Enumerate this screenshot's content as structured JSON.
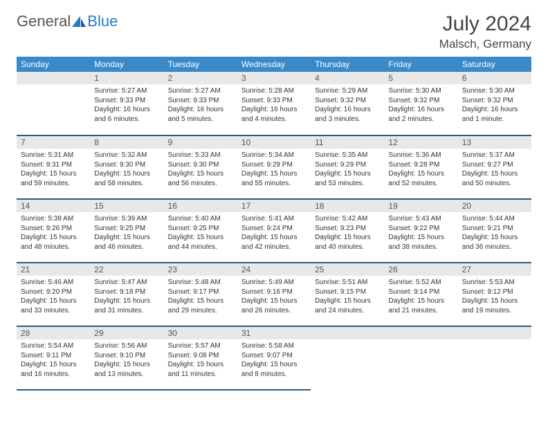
{
  "brand": {
    "part1": "General",
    "part2": "Blue"
  },
  "title": "July 2024",
  "location": "Malsch, Germany",
  "colors": {
    "header_bg": "#3a8ac9",
    "header_text": "#ffffff",
    "daynum_bg": "#e8e8e8",
    "cell_border": "#2a5a8a",
    "brand_blue": "#2a7abf",
    "text": "#333333"
  },
  "weekdays": [
    "Sunday",
    "Monday",
    "Tuesday",
    "Wednesday",
    "Thursday",
    "Friday",
    "Saturday"
  ],
  "weeks": [
    [
      null,
      {
        "n": "1",
        "sr": "Sunrise: 5:27 AM",
        "ss": "Sunset: 9:33 PM",
        "d1": "Daylight: 16 hours",
        "d2": "and 6 minutes."
      },
      {
        "n": "2",
        "sr": "Sunrise: 5:27 AM",
        "ss": "Sunset: 9:33 PM",
        "d1": "Daylight: 16 hours",
        "d2": "and 5 minutes."
      },
      {
        "n": "3",
        "sr": "Sunrise: 5:28 AM",
        "ss": "Sunset: 9:33 PM",
        "d1": "Daylight: 16 hours",
        "d2": "and 4 minutes."
      },
      {
        "n": "4",
        "sr": "Sunrise: 5:29 AM",
        "ss": "Sunset: 9:32 PM",
        "d1": "Daylight: 16 hours",
        "d2": "and 3 minutes."
      },
      {
        "n": "5",
        "sr": "Sunrise: 5:30 AM",
        "ss": "Sunset: 9:32 PM",
        "d1": "Daylight: 16 hours",
        "d2": "and 2 minutes."
      },
      {
        "n": "6",
        "sr": "Sunrise: 5:30 AM",
        "ss": "Sunset: 9:32 PM",
        "d1": "Daylight: 16 hours",
        "d2": "and 1 minute."
      }
    ],
    [
      {
        "n": "7",
        "sr": "Sunrise: 5:31 AM",
        "ss": "Sunset: 9:31 PM",
        "d1": "Daylight: 15 hours",
        "d2": "and 59 minutes."
      },
      {
        "n": "8",
        "sr": "Sunrise: 5:32 AM",
        "ss": "Sunset: 9:30 PM",
        "d1": "Daylight: 15 hours",
        "d2": "and 58 minutes."
      },
      {
        "n": "9",
        "sr": "Sunrise: 5:33 AM",
        "ss": "Sunset: 9:30 PM",
        "d1": "Daylight: 15 hours",
        "d2": "and 56 minutes."
      },
      {
        "n": "10",
        "sr": "Sunrise: 5:34 AM",
        "ss": "Sunset: 9:29 PM",
        "d1": "Daylight: 15 hours",
        "d2": "and 55 minutes."
      },
      {
        "n": "11",
        "sr": "Sunrise: 5:35 AM",
        "ss": "Sunset: 9:29 PM",
        "d1": "Daylight: 15 hours",
        "d2": "and 53 minutes."
      },
      {
        "n": "12",
        "sr": "Sunrise: 5:36 AM",
        "ss": "Sunset: 9:28 PM",
        "d1": "Daylight: 15 hours",
        "d2": "and 52 minutes."
      },
      {
        "n": "13",
        "sr": "Sunrise: 5:37 AM",
        "ss": "Sunset: 9:27 PM",
        "d1": "Daylight: 15 hours",
        "d2": "and 50 minutes."
      }
    ],
    [
      {
        "n": "14",
        "sr": "Sunrise: 5:38 AM",
        "ss": "Sunset: 9:26 PM",
        "d1": "Daylight: 15 hours",
        "d2": "and 48 minutes."
      },
      {
        "n": "15",
        "sr": "Sunrise: 5:39 AM",
        "ss": "Sunset: 9:25 PM",
        "d1": "Daylight: 15 hours",
        "d2": "and 46 minutes."
      },
      {
        "n": "16",
        "sr": "Sunrise: 5:40 AM",
        "ss": "Sunset: 9:25 PM",
        "d1": "Daylight: 15 hours",
        "d2": "and 44 minutes."
      },
      {
        "n": "17",
        "sr": "Sunrise: 5:41 AM",
        "ss": "Sunset: 9:24 PM",
        "d1": "Daylight: 15 hours",
        "d2": "and 42 minutes."
      },
      {
        "n": "18",
        "sr": "Sunrise: 5:42 AM",
        "ss": "Sunset: 9:23 PM",
        "d1": "Daylight: 15 hours",
        "d2": "and 40 minutes."
      },
      {
        "n": "19",
        "sr": "Sunrise: 5:43 AM",
        "ss": "Sunset: 9:22 PM",
        "d1": "Daylight: 15 hours",
        "d2": "and 38 minutes."
      },
      {
        "n": "20",
        "sr": "Sunrise: 5:44 AM",
        "ss": "Sunset: 9:21 PM",
        "d1": "Daylight: 15 hours",
        "d2": "and 36 minutes."
      }
    ],
    [
      {
        "n": "21",
        "sr": "Sunrise: 5:46 AM",
        "ss": "Sunset: 9:20 PM",
        "d1": "Daylight: 15 hours",
        "d2": "and 33 minutes."
      },
      {
        "n": "22",
        "sr": "Sunrise: 5:47 AM",
        "ss": "Sunset: 9:18 PM",
        "d1": "Daylight: 15 hours",
        "d2": "and 31 minutes."
      },
      {
        "n": "23",
        "sr": "Sunrise: 5:48 AM",
        "ss": "Sunset: 9:17 PM",
        "d1": "Daylight: 15 hours",
        "d2": "and 29 minutes."
      },
      {
        "n": "24",
        "sr": "Sunrise: 5:49 AM",
        "ss": "Sunset: 9:16 PM",
        "d1": "Daylight: 15 hours",
        "d2": "and 26 minutes."
      },
      {
        "n": "25",
        "sr": "Sunrise: 5:51 AM",
        "ss": "Sunset: 9:15 PM",
        "d1": "Daylight: 15 hours",
        "d2": "and 24 minutes."
      },
      {
        "n": "26",
        "sr": "Sunrise: 5:52 AM",
        "ss": "Sunset: 9:14 PM",
        "d1": "Daylight: 15 hours",
        "d2": "and 21 minutes."
      },
      {
        "n": "27",
        "sr": "Sunrise: 5:53 AM",
        "ss": "Sunset: 9:12 PM",
        "d1": "Daylight: 15 hours",
        "d2": "and 19 minutes."
      }
    ],
    [
      {
        "n": "28",
        "sr": "Sunrise: 5:54 AM",
        "ss": "Sunset: 9:11 PM",
        "d1": "Daylight: 15 hours",
        "d2": "and 16 minutes."
      },
      {
        "n": "29",
        "sr": "Sunrise: 5:56 AM",
        "ss": "Sunset: 9:10 PM",
        "d1": "Daylight: 15 hours",
        "d2": "and 13 minutes."
      },
      {
        "n": "30",
        "sr": "Sunrise: 5:57 AM",
        "ss": "Sunset: 9:08 PM",
        "d1": "Daylight: 15 hours",
        "d2": "and 11 minutes."
      },
      {
        "n": "31",
        "sr": "Sunrise: 5:58 AM",
        "ss": "Sunset: 9:07 PM",
        "d1": "Daylight: 15 hours",
        "d2": "and 8 minutes."
      },
      null,
      null,
      null
    ]
  ]
}
